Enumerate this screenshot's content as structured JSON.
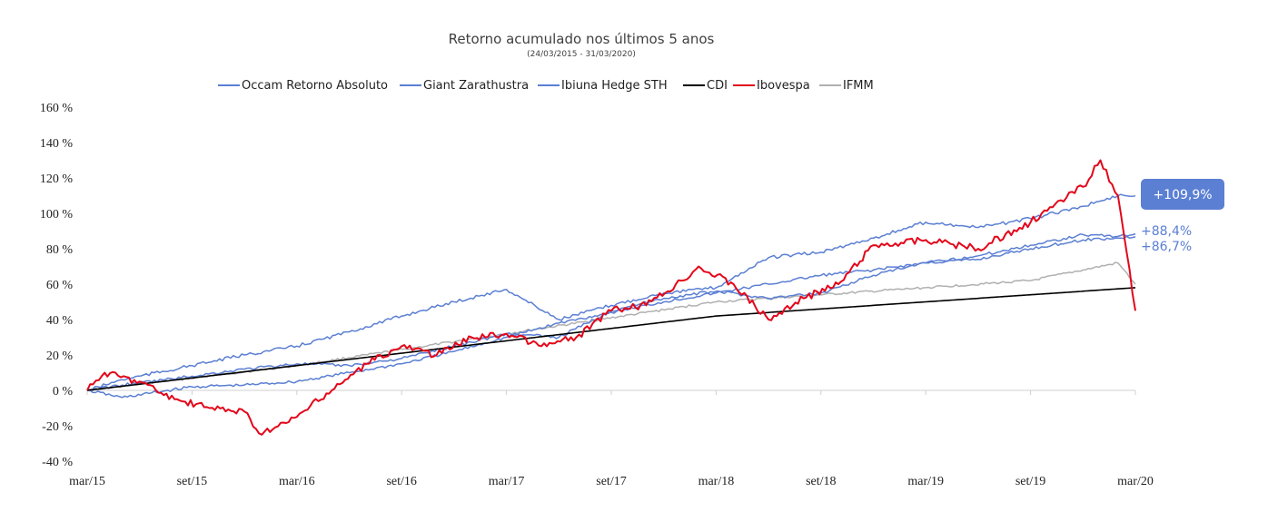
{
  "chart_data": {
    "type": "line",
    "title": "Retorno acumulado nos últimos 5 anos",
    "subtitle": "(24/03/2015 - 31/03/2020)",
    "xlabel": "",
    "ylabel": "",
    "ylim": [
      -40,
      160
    ],
    "y_ticks": [
      "-40 %",
      "-20 %",
      "0 %",
      "20 %",
      "40 %",
      "60 %",
      "80 %",
      "100 %",
      "120 %",
      "140 %",
      "160 %"
    ],
    "x_ticks": [
      "mar/15",
      "set/15",
      "mar/16",
      "set/16",
      "mar/17",
      "set/17",
      "mar/18",
      "set/18",
      "mar/19",
      "set/19",
      "mar/20"
    ],
    "grid": false,
    "legend_position": "top",
    "series": [
      {
        "name": "Occam Retorno Absoluto",
        "color": "#5B7FD3",
        "x": [
          "mar/15",
          "mai/15",
          "set/15",
          "dez/15",
          "mar/16",
          "jun/16",
          "set/16",
          "dez/16",
          "mar/17",
          "jun/17",
          "set/17",
          "dez/17",
          "mar/18",
          "jun/18",
          "set/18",
          "dez/18",
          "mar/19",
          "jun/19",
          "set/19",
          "dez/19",
          "fev/20",
          "mar/20"
        ],
        "values": [
          0,
          -4,
          2,
          3,
          5,
          10,
          15,
          22,
          30,
          38,
          44,
          50,
          55,
          60,
          65,
          68,
          72,
          74,
          80,
          85,
          86,
          86.7
        ]
      },
      {
        "name": "Giant Zarathustra",
        "color": "#5B7FD3",
        "x": [
          "mar/15",
          "mai/15",
          "set/15",
          "dez/15",
          "mar/16",
          "jun/16",
          "set/16",
          "dez/16",
          "mar/17",
          "jun/17",
          "set/17",
          "dez/17",
          "mar/18",
          "jun/18",
          "set/18",
          "dez/18",
          "mar/19",
          "jun/19",
          "set/19",
          "dez/19",
          "fev/20",
          "mar/20"
        ],
        "values": [
          0,
          6,
          14,
          20,
          25,
          33,
          42,
          50,
          57,
          40,
          48,
          55,
          58,
          75,
          78,
          86,
          95,
          92,
          97,
          104,
          110,
          109.9
        ]
      },
      {
        "name": "Ibiuna Hedge STH",
        "color": "#5B7FD3",
        "x": [
          "mar/15",
          "mai/15",
          "set/15",
          "dez/15",
          "mar/16",
          "jun/16",
          "set/16",
          "dez/16",
          "mar/17",
          "jun/17",
          "set/17",
          "dez/17",
          "mar/18",
          "jun/18",
          "set/18",
          "dez/18",
          "mar/19",
          "jun/19",
          "set/19",
          "dez/19",
          "fev/20",
          "mar/20"
        ],
        "values": [
          0,
          3,
          8,
          12,
          15,
          14,
          18,
          25,
          32,
          30,
          45,
          52,
          56,
          52,
          55,
          65,
          72,
          76,
          82,
          88,
          87,
          88.4
        ]
      },
      {
        "name": "CDI",
        "color": "#000000",
        "x": [
          "mar/15",
          "mar/16",
          "mar/17",
          "mar/18",
          "mar/19",
          "mar/20"
        ],
        "values": [
          0,
          14,
          28,
          42,
          50,
          58
        ]
      },
      {
        "name": "Ibovespa",
        "color": "#E3061A",
        "x": [
          "mar/15",
          "abr/15",
          "jun/15",
          "ago/15",
          "out/15",
          "dez/15",
          "jan/16",
          "mar/16",
          "mai/16",
          "jul/16",
          "set/16",
          "nov/16",
          "jan/17",
          "mar/17",
          "mai/17",
          "jul/17",
          "set/17",
          "nov/17",
          "jan/18",
          "fev/18",
          "abr/18",
          "jun/18",
          "ago/18",
          "out/18",
          "dez/18",
          "mar/19",
          "jun/19",
          "set/19",
          "dez/19",
          "jan/20",
          "fev/20",
          "mar/20"
        ],
        "values": [
          0,
          10,
          5,
          -5,
          -10,
          -12,
          -25,
          -15,
          0,
          15,
          25,
          20,
          30,
          32,
          25,
          30,
          45,
          48,
          62,
          70,
          60,
          40,
          52,
          60,
          82,
          85,
          80,
          95,
          115,
          130,
          110,
          45
        ]
      },
      {
        "name": "IFMM",
        "color": "#B0B0B0",
        "x": [
          "mar/15",
          "mar/16",
          "mar/17",
          "mar/18",
          "mar/19",
          "set/19",
          "dez/19",
          "fev/20",
          "mar/20"
        ],
        "values": [
          0,
          14,
          32,
          50,
          58,
          62,
          68,
          72,
          60
        ]
      }
    ],
    "end_labels": [
      {
        "text": "+109,9%",
        "style": "boxed",
        "color": "#5B7FD3"
      },
      {
        "text": "+88,4%",
        "style": "plain",
        "color": "#5B7FD3"
      },
      {
        "text": "+86,7%",
        "style": "plain",
        "color": "#5B7FD3"
      }
    ]
  }
}
